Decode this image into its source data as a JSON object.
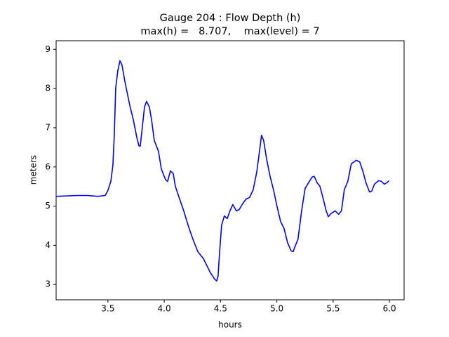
{
  "chart_data": {
    "type": "line",
    "title": "Gauge 204 : Flow Depth (h)",
    "subtitle": "max(h) =   8.707,    max(level) = 7",
    "x_label": "hours",
    "y_label": "meters",
    "xlim": [
      3.04,
      6.13
    ],
    "ylim": [
      2.61,
      9.22
    ],
    "xticks": [
      {
        "value": 3.5,
        "label": "3.5"
      },
      {
        "value": 4.0,
        "label": "4.0"
      },
      {
        "value": 4.5,
        "label": "4.5"
      },
      {
        "value": 5.0,
        "label": "5.0"
      },
      {
        "value": 5.5,
        "label": "5.5"
      },
      {
        "value": 6.0,
        "label": "6.0"
      }
    ],
    "yticks": [
      3,
      4,
      5,
      6,
      7,
      8,
      9
    ],
    "series": [
      {
        "color": "#0000ff",
        "x": [
          3.04,
          3.23,
          3.32,
          3.41,
          3.476,
          3.5,
          3.526,
          3.544,
          3.557,
          3.569,
          3.588,
          3.607,
          3.625,
          3.65,
          3.694,
          3.725,
          3.756,
          3.775,
          3.787,
          3.806,
          3.825,
          3.843,
          3.868,
          3.887,
          3.912,
          3.949,
          3.974,
          4.011,
          4.03,
          4.055,
          4.08,
          4.099,
          4.13,
          4.173,
          4.211,
          4.254,
          4.298,
          4.348,
          4.379,
          4.41,
          4.447,
          4.466,
          4.478,
          4.491,
          4.51,
          4.534,
          4.559,
          4.584,
          4.609,
          4.64,
          4.665,
          4.696,
          4.727,
          4.758,
          4.79,
          4.821,
          4.846,
          4.864,
          4.883,
          4.908,
          4.939,
          4.97,
          5.001,
          5.033,
          5.064,
          5.095,
          5.126,
          5.145,
          5.163,
          5.188,
          5.22,
          5.251,
          5.282,
          5.313,
          5.332,
          5.357,
          5.382,
          5.407,
          5.438,
          5.457,
          5.481,
          5.518,
          5.549,
          5.574,
          5.599,
          5.63,
          5.661,
          5.705,
          5.736,
          5.767,
          5.792,
          5.823,
          5.842,
          5.867,
          5.904,
          5.929,
          5.954,
          5.979,
          5.997
        ],
        "values": [
          5.25,
          5.27,
          5.27,
          5.25,
          5.27,
          5.4,
          5.63,
          6.04,
          6.85,
          8.01,
          8.46,
          8.71,
          8.6,
          8.19,
          7.57,
          7.21,
          6.76,
          6.54,
          6.53,
          7.03,
          7.53,
          7.67,
          7.53,
          7.21,
          6.67,
          6.4,
          5.95,
          5.68,
          5.63,
          5.9,
          5.83,
          5.5,
          5.24,
          4.88,
          4.52,
          4.16,
          3.84,
          3.66,
          3.48,
          3.3,
          3.14,
          3.09,
          3.21,
          3.8,
          4.52,
          4.75,
          4.68,
          4.88,
          5.04,
          4.88,
          4.91,
          5.06,
          5.18,
          5.22,
          5.42,
          5.86,
          6.4,
          6.81,
          6.67,
          6.22,
          5.77,
          5.42,
          5.0,
          4.61,
          4.43,
          4.07,
          3.86,
          3.84,
          3.98,
          4.16,
          4.88,
          5.45,
          5.6,
          5.74,
          5.76,
          5.6,
          5.51,
          5.24,
          4.88,
          4.73,
          4.81,
          4.88,
          4.79,
          4.88,
          5.42,
          5.63,
          6.08,
          6.17,
          6.13,
          5.86,
          5.59,
          5.36,
          5.38,
          5.56,
          5.65,
          5.63,
          5.56,
          5.6,
          5.65
        ]
      }
    ]
  }
}
